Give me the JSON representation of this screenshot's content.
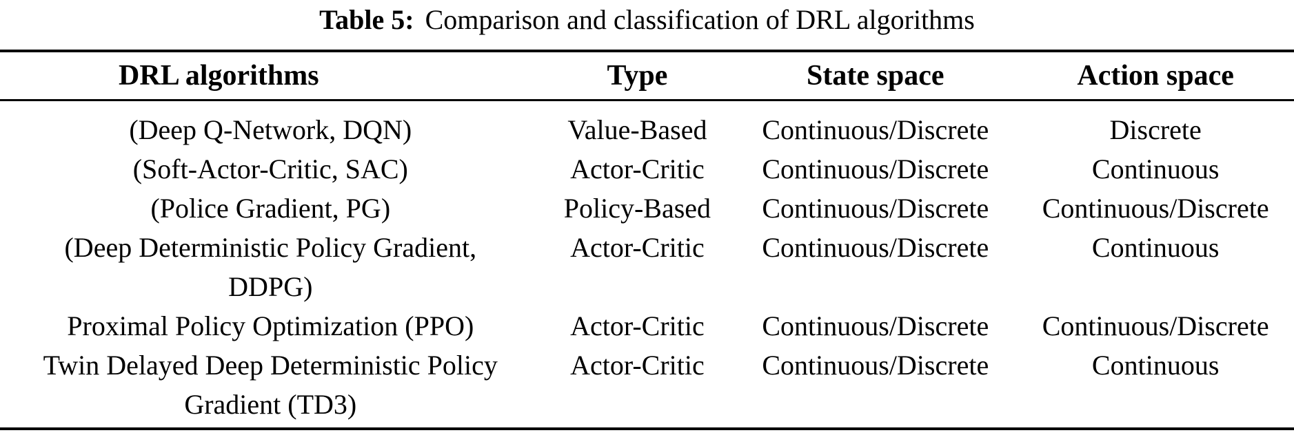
{
  "title": {
    "label": "Table 5:",
    "text": "Comparison and classification of DRL algorithms"
  },
  "table": {
    "columns": [
      {
        "label": "DRL algorithms"
      },
      {
        "label": "Type"
      },
      {
        "label": "State space"
      },
      {
        "label": "Action space"
      }
    ],
    "rows": [
      {
        "algorithm": "(Deep Q-Network, DQN)",
        "type": "Value-Based",
        "state_space": "Continuous/Discrete",
        "action_space": "Discrete"
      },
      {
        "algorithm": "(Soft-Actor-Critic, SAC)",
        "type": "Actor-Critic",
        "state_space": "Continuous/Discrete",
        "action_space": "Continuous"
      },
      {
        "algorithm": "(Police Gradient, PG)",
        "type": "Policy-Based",
        "state_space": "Continuous/Discrete",
        "action_space": "Continuous/Discrete"
      },
      {
        "algorithm": "(Deep Deterministic Policy Gradient,\nDDPG)",
        "type": "Actor-Critic",
        "state_space": "Continuous/Discrete",
        "action_space": "Continuous"
      },
      {
        "algorithm": "Proximal Policy Optimization (PPO)",
        "type": "Actor-Critic",
        "state_space": "Continuous/Discrete",
        "action_space": "Continuous/Discrete"
      },
      {
        "algorithm": "Twin Delayed Deep Deterministic Policy\nGradient (TD3)",
        "type": "Actor-Critic",
        "state_space": "Continuous/Discrete",
        "action_space": "Continuous"
      }
    ]
  },
  "colors": {
    "text": "#000000",
    "background": "#ffffff",
    "rule": "#000000"
  }
}
